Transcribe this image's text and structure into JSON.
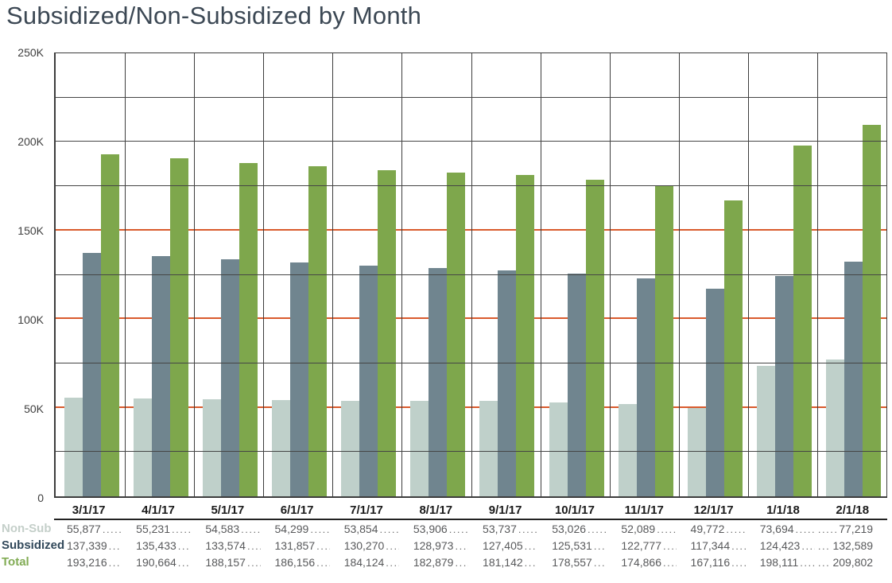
{
  "title": "Subsidized/Non-Subsidized by Month",
  "chart_data": {
    "type": "bar",
    "title": "Subsidized/Non-Subsidized by Month",
    "categories": [
      "3/1/17",
      "4/1/17",
      "5/1/17",
      "6/1/17",
      "7/1/17",
      "8/1/17",
      "9/1/17",
      "10/1/17",
      "11/1/17",
      "12/1/17",
      "1/1/18",
      "2/1/18"
    ],
    "series": [
      {
        "name": "Non-Sub",
        "color": "#bfd0ca",
        "values": [
          55877,
          55231,
          54583,
          54299,
          53854,
          53906,
          53737,
          53026,
          52089,
          49772,
          73694,
          77219
        ]
      },
      {
        "name": "Subsidized",
        "color": "#70858f",
        "values": [
          137339,
          135433,
          133574,
          131857,
          130270,
          128973,
          127405,
          125531,
          122777,
          117344,
          124423,
          132589
        ]
      },
      {
        "name": "Total",
        "color": "#7ea74c",
        "values": [
          193216,
          190664,
          188157,
          186156,
          184124,
          182879,
          181142,
          178557,
          174866,
          167116,
          198111,
          209802
        ]
      }
    ],
    "xlabel": "",
    "ylabel": "",
    "ylim": [
      0,
      250000
    ],
    "ytick_step": 25000,
    "ylabel_values": [
      0,
      50000,
      100000,
      150000,
      200000,
      250000
    ],
    "ytick_labels": [
      "0",
      "50K",
      "100K",
      "150K",
      "200K",
      "250K"
    ],
    "grid": "on",
    "grid_color": "#454545",
    "accent_gridlines": [
      50000,
      100000,
      150000
    ],
    "accent_color": "#d95b2d",
    "legend_position": "table-below-chart"
  },
  "table": {
    "columns": [
      "3/1/17",
      "4/1/17",
      "5/1/17",
      "6/1/17",
      "7/1/17",
      "8/1/17",
      "9/1/17",
      "10/1/17",
      "11/1/17",
      "12/1/17",
      "1/1/18",
      "2/1/18"
    ],
    "rows": [
      {
        "label": "Non-Sub",
        "label_color": "#c4cfc9",
        "values": [
          "55,877",
          "55,231",
          "54,583",
          "54,299",
          "53,854",
          "53,906",
          "53,737",
          "53,026",
          "52,089",
          "49,772",
          "73,694",
          "77,219"
        ]
      },
      {
        "label": "Subsidized",
        "label_color": "#31485a",
        "values": [
          "137,339",
          "135,433",
          "133,574",
          "131,857",
          "130,270",
          "128,973",
          "127,405",
          "125,531",
          "122,777",
          "117,344",
          "124,423",
          "132,589"
        ]
      },
      {
        "label": "Total",
        "label_color": "#82ac55",
        "values": [
          "193,216",
          "190,664",
          "188,157",
          "186,156",
          "184,124",
          "182,879",
          "181,142",
          "178,557",
          "174,866",
          "167,116",
          "198,111",
          "209,802"
        ]
      }
    ]
  }
}
